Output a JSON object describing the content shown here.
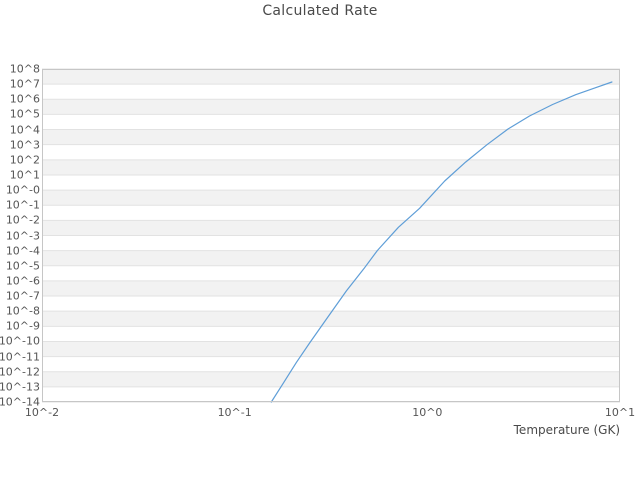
{
  "title": "Calculated Rate",
  "colors": {
    "line": "#5f9ed7",
    "band": "#f2f2f2",
    "band_alt": "#ffffff",
    "gridline": "#e2e2e2",
    "frame": "#c6c6c6",
    "text": "#555555",
    "title_text": "#4a4a4a"
  },
  "chart_data": {
    "type": "line",
    "title": "Calculated Rate",
    "xlabel": "Temperature (GK)",
    "ylabel": "",
    "x_scale": "log",
    "y_scale": "log",
    "xlim_log10": [
      -2,
      1
    ],
    "ylim_log10": [
      -14,
      8
    ],
    "grid": "horizontal-bands",
    "legend_position": "none",
    "x_ticks": {
      "labels": [
        "10^-2",
        "10^-1",
        "10^0",
        "10^1"
      ],
      "log10": [
        -2,
        -1,
        0,
        1
      ]
    },
    "y_ticks": {
      "labels": [
        "10^8",
        "10^7",
        "10^6",
        "10^5",
        "10^4",
        "10^3",
        "10^2",
        "10^1",
        "10^-0",
        "10^-1",
        "10^-2",
        "10^-3",
        "10^-4",
        "10^-5",
        "10^-6",
        "10^-7",
        "10^-8",
        "10^-9",
        "10^-10",
        "10^-11",
        "10^-12",
        "10^-13",
        "10^-14"
      ],
      "log10": [
        8,
        7,
        6,
        5,
        4,
        3,
        2,
        1,
        0,
        -1,
        -2,
        -3,
        -4,
        -5,
        -6,
        -7,
        -8,
        -9,
        -10,
        -11,
        -12,
        -13,
        -14
      ]
    },
    "series": [
      {
        "name": "calculated-rate",
        "points_T_rate": [
          [
            0.155,
            1e-14
          ],
          [
            0.178,
            1.6e-13
          ],
          [
            0.209,
            4e-12
          ],
          [
            0.245,
            7.9e-11
          ],
          [
            0.302,
            3.5e-09
          ],
          [
            0.38,
            2.2e-07
          ],
          [
            0.468,
            6.3e-06
          ],
          [
            0.55,
            0.0001
          ],
          [
            0.708,
            0.0035
          ],
          [
            0.912,
            0.063
          ],
          [
            1.23,
            4.0
          ],
          [
            1.58,
            71
          ],
          [
            2.04,
            1000.0
          ],
          [
            2.63,
            11000.0
          ],
          [
            3.39,
            79000.0
          ],
          [
            4.47,
            450000.0
          ],
          [
            5.89,
            2000000.0
          ],
          [
            7.41,
            5600000.0
          ],
          [
            9.08,
            13800000.0
          ]
        ]
      }
    ]
  }
}
